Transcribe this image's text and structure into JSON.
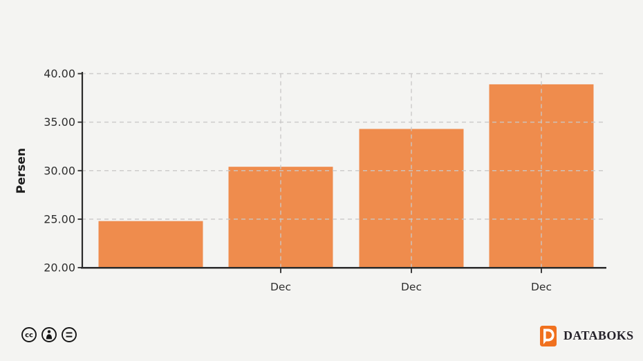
{
  "chart_data": {
    "type": "bar",
    "categories": [
      "",
      "Dec",
      "Dec",
      "Dec"
    ],
    "values": [
      24.8,
      30.4,
      34.3,
      38.9
    ],
    "title": "",
    "xlabel": "",
    "ylabel": "Persen",
    "ylim": [
      20,
      40
    ],
    "yticks": [
      20,
      25,
      30,
      35,
      40
    ],
    "ytick_labels": [
      "20.00",
      "25.00",
      "30.00",
      "35.00",
      "40.00"
    ],
    "grid": "dashed horizontal and vertical",
    "legend_position": "none",
    "bar_color": "#ef8c4d"
  },
  "footer": {
    "license": {
      "icons": [
        "cc-icon",
        "attribution-person-icon",
        "no-derivatives-icon"
      ],
      "cc_text": "cc"
    },
    "brand": {
      "name": "DATABOKS",
      "logo_color": "#f0711f"
    }
  },
  "colors": {
    "background": "#f4f4f2",
    "axis": "#2a2a2a",
    "text": "#2e2e2e",
    "grid": "#c9c8c6"
  }
}
